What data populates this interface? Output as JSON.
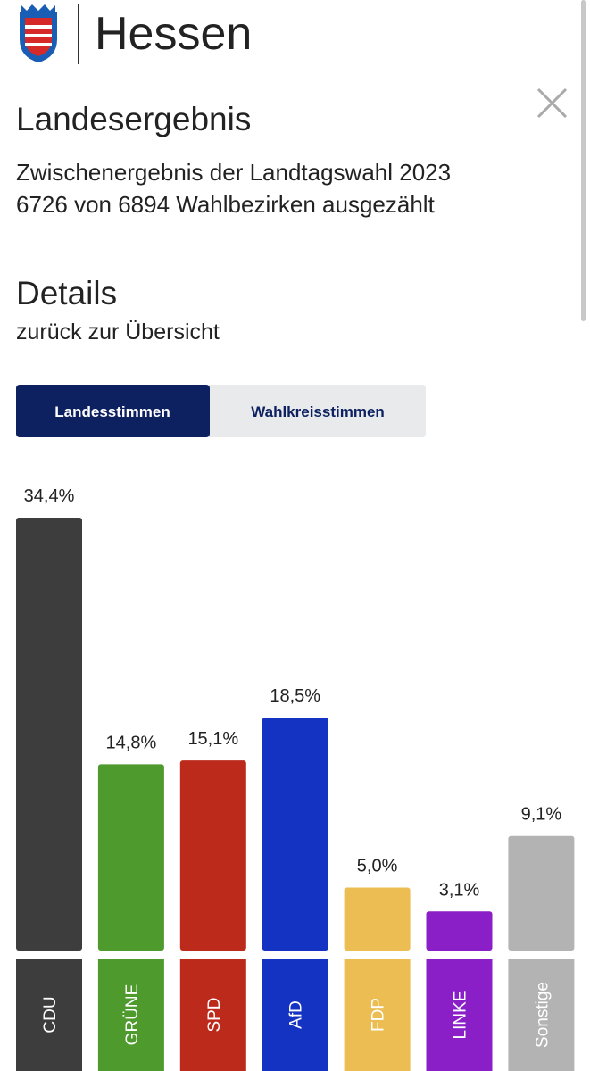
{
  "header": {
    "title": "Hessen"
  },
  "heading": "Landesergebnis",
  "subtitle": [
    "Zwischenergebnis der Landtagswahl 2023",
    "6726 von 6894 Wahlbezirken ausgezählt"
  ],
  "details": {
    "title": "Details",
    "link": "zurück zur Übersicht"
  },
  "tabs": [
    "Landesstimmen",
    "Wahlkreisstimmen"
  ],
  "chart_data": {
    "type": "bar",
    "categories": [
      "CDU",
      "GRÜNE",
      "SPD",
      "AfD",
      "FDP",
      "LINKE",
      "Sonstige"
    ],
    "values": [
      34.4,
      14.8,
      15.1,
      18.5,
      5.0,
      3.1,
      9.1
    ],
    "value_labels": [
      "34,4%",
      "14,8%",
      "15,1%",
      "18,5%",
      "5,0%",
      "3,1%",
      "9,1%"
    ],
    "colors": [
      "#3d3d3d",
      "#4e9a2d",
      "#bc2a1c",
      "#1433c2",
      "#ebbd52",
      "#8a1fc8",
      "#b3b3b3"
    ]
  }
}
